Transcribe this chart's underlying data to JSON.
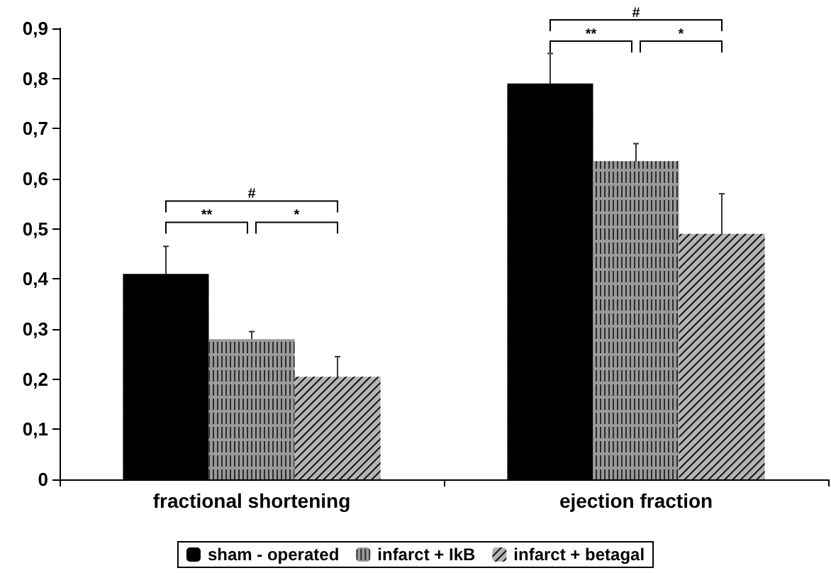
{
  "chart_data": {
    "type": "bar",
    "categories": [
      "fractional shortening",
      "ejection fraction"
    ],
    "series": [
      {
        "name": "sham - operated",
        "color": "#000000",
        "values": [
          0.41,
          0.79
        ],
        "errors": [
          0.055,
          0.06
        ]
      },
      {
        "name": "infarct + IkB",
        "color": "#9a9a9a",
        "values": [
          0.28,
          0.635
        ],
        "errors": [
          0.015,
          0.035
        ]
      },
      {
        "name": "infarct + betagal",
        "color": "#b4b4b4",
        "values": [
          0.205,
          0.49
        ],
        "errors": [
          0.04,
          0.08
        ]
      }
    ],
    "ylim": [
      0,
      0.9
    ],
    "yticks": [
      {
        "value": 0,
        "label": "0"
      },
      {
        "value": 0.1,
        "label": "0,1"
      },
      {
        "value": 0.2,
        "label": "0,2"
      },
      {
        "value": 0.3,
        "label": "0,3"
      },
      {
        "value": 0.4,
        "label": "0,4"
      },
      {
        "value": 0.5,
        "label": "0,5"
      },
      {
        "value": 0.6,
        "label": "0,6"
      },
      {
        "value": 0.7,
        "label": "0,7"
      },
      {
        "value": 0.8,
        "label": "0,8"
      },
      {
        "value": 0.9,
        "label": "0,9"
      }
    ],
    "annotations": [
      "#",
      "**",
      "*",
      "#",
      "**",
      "*"
    ],
    "grid": false,
    "legend": "bottom"
  }
}
